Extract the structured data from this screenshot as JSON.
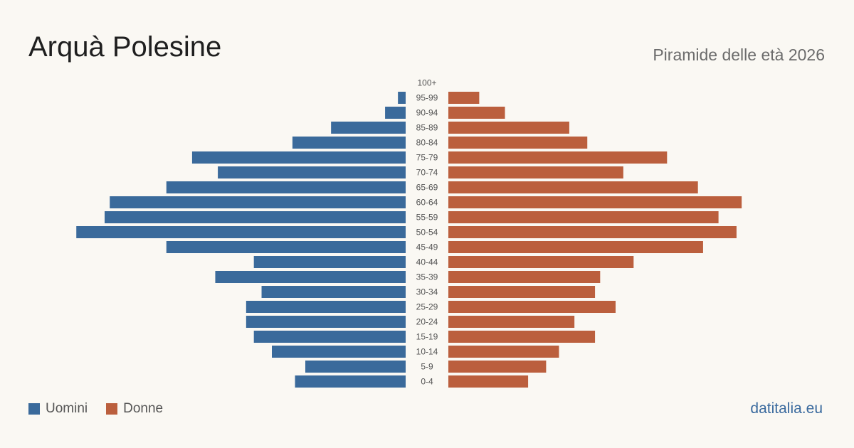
{
  "header": {
    "title": "Arquà Polesine",
    "subtitle": "Piramide delle età 2026"
  },
  "legend": {
    "men_label": "Uomini",
    "women_label": "Donne"
  },
  "brand": {
    "text": "datitalia.eu"
  },
  "colors": {
    "men": "#3a6a9b",
    "women": "#bb5f3d",
    "background": "#faf8f3"
  },
  "chart_data": {
    "type": "bar",
    "orientation": "horizontal-pyramid",
    "categories": [
      "100+",
      "95-99",
      "90-94",
      "85-89",
      "80-84",
      "75-79",
      "70-74",
      "65-69",
      "60-64",
      "55-59",
      "50-54",
      "45-49",
      "40-44",
      "35-39",
      "30-34",
      "25-29",
      "20-24",
      "15-19",
      "10-14",
      "5-9",
      "0-4"
    ],
    "series": [
      {
        "name": "Uomini",
        "values": [
          0,
          3,
          8,
          29,
          44,
          83,
          73,
          93,
          115,
          117,
          128,
          93,
          59,
          74,
          56,
          62,
          62,
          59,
          52,
          39,
          43
        ]
      },
      {
        "name": "Donne",
        "values": [
          0,
          12,
          22,
          47,
          54,
          85,
          68,
          97,
          114,
          105,
          112,
          99,
          72,
          59,
          57,
          65,
          49,
          57,
          43,
          38,
          31
        ]
      }
    ],
    "xlim": [
      0,
      130
    ],
    "grid": false
  }
}
